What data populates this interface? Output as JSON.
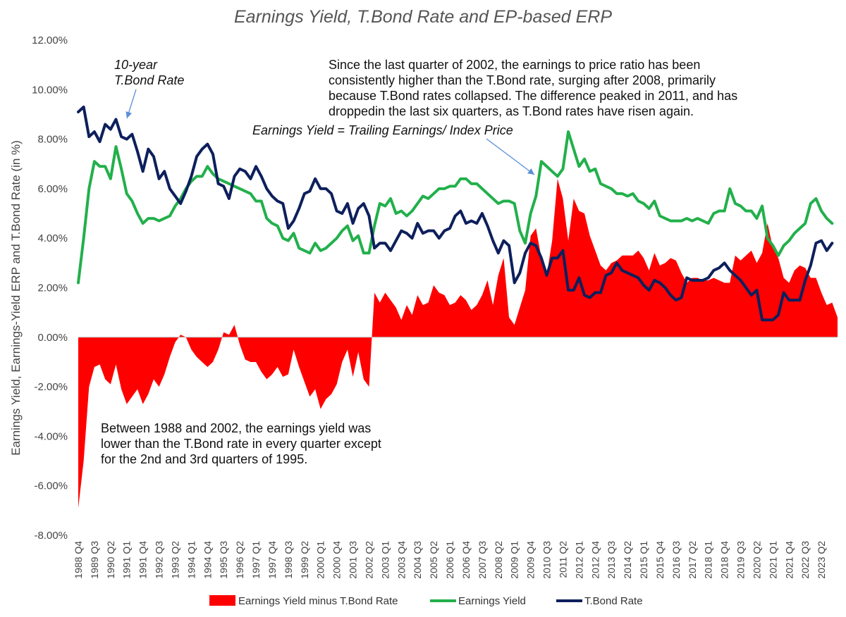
{
  "chart_data": {
    "type": "area",
    "title": "Earnings Yield, T.Bond Rate and EP-based ERP",
    "ylabel": "Earnings Yield, Earnings-Yield ERP and T.Bond Rate (in %)",
    "xlabel": "",
    "ylim": [
      -8,
      12
    ],
    "yticks": [
      "12.00%",
      "10.00%",
      "8.00%",
      "6.00%",
      "4.00%",
      "2.00%",
      "0.00%",
      "-2.00%",
      "-4.00%",
      "-6.00%",
      "-8.00%"
    ],
    "ytick_values": [
      12,
      10,
      8,
      6,
      4,
      2,
      0,
      -2,
      -4,
      -6,
      -8
    ],
    "x_start": "1988 Q4",
    "x_end": "2023 Q2",
    "x_tick_labels": [
      "1988 Q4",
      "1989 Q3",
      "1990 Q2",
      "1991 Q1",
      "1991 Q4",
      "1992 Q3",
      "1993 Q2",
      "1994 Q1",
      "1994 Q4",
      "1995 Q3",
      "1996 Q2",
      "1997 Q1",
      "1997 Q4",
      "1998 Q3",
      "1999 Q2",
      "2000 Q1",
      "2000 Q4",
      "2001 Q3",
      "2002 Q2",
      "2003 Q1",
      "2003 Q4",
      "2004 Q3",
      "2005 Q2",
      "2006 Q1",
      "2006 Q4",
      "2007 Q3",
      "2008 Q2",
      "2009 Q1",
      "2009 Q4",
      "2010 Q3",
      "2011 Q2",
      "2012 Q1",
      "2012 Q4",
      "2013 Q3",
      "2014 Q2",
      "2015 Q1",
      "2015 Q4",
      "2016 Q3",
      "2017 Q2",
      "2018 Q1",
      "2018 Q4",
      "2019 Q3",
      "2020 Q2",
      "2021 Q1",
      "2021 Q4",
      "2022 Q3",
      "2023 Q2"
    ],
    "grid": false,
    "legend_position": "bottom",
    "series": [
      {
        "name": "Earnings Yield minus T.Bond Rate",
        "type": "area",
        "color": "#ff0000",
        "values": [
          -6.9,
          -5.0,
          -2.0,
          -1.2,
          -1.1,
          -1.7,
          -1.9,
          -1.1,
          -2.1,
          -2.7,
          -2.4,
          -2.1,
          -2.7,
          -2.3,
          -1.7,
          -2.0,
          -1.5,
          -0.8,
          -0.2,
          0.1,
          0.0,
          -0.5,
          -0.8,
          -1.0,
          -1.2,
          -1.0,
          -0.5,
          0.2,
          0.1,
          0.5,
          -0.3,
          -0.9,
          -1.0,
          -1.0,
          -1.4,
          -1.7,
          -1.5,
          -1.2,
          -1.6,
          -1.5,
          -0.5,
          -1.2,
          -1.8,
          -2.4,
          -2.1,
          -2.9,
          -2.5,
          -2.3,
          -1.9,
          -1.0,
          -0.5,
          -1.6,
          -0.6,
          -1.7,
          -2.0,
          1.8,
          1.4,
          1.8,
          1.5,
          1.2,
          0.7,
          1.3,
          0.9,
          1.7,
          1.3,
          1.4,
          2.1,
          1.8,
          1.7,
          1.3,
          1.4,
          1.7,
          1.5,
          1.1,
          1.3,
          1.7,
          2.3,
          1.3,
          2.5,
          3.2,
          0.8,
          0.5,
          1.2,
          1.9,
          4.1,
          4.4,
          3.2,
          2.5,
          3.9,
          6.4,
          5.6,
          3.9,
          5.6,
          5.1,
          5.0,
          4.1,
          3.5,
          2.9,
          2.7,
          3.0,
          3.1,
          3.3,
          3.3,
          3.3,
          3.5,
          3.2,
          2.7,
          3.4,
          2.9,
          3.0,
          3.2,
          3.1,
          2.6,
          2.2,
          2.4,
          2.4,
          2.3,
          2.3,
          2.4,
          2.3,
          2.2,
          2.2,
          3.3,
          3.1,
          3.3,
          3.5,
          3.0,
          3.4,
          4.6,
          3.6,
          3.2,
          2.4,
          2.2,
          2.7,
          2.9,
          2.8,
          2.4,
          2.4,
          1.8,
          1.3,
          1.4,
          0.8
        ],
        "color_note": "filled area"
      },
      {
        "name": "Earnings Yield",
        "type": "line",
        "color": "#22b04b",
        "values": [
          2.2,
          4.0,
          6.0,
          7.1,
          6.9,
          6.9,
          6.4,
          7.7,
          6.8,
          5.8,
          5.5,
          5.0,
          4.6,
          4.8,
          4.8,
          4.7,
          4.8,
          4.9,
          5.3,
          5.6,
          6.0,
          6.3,
          6.5,
          6.5,
          6.9,
          6.6,
          6.4,
          6.3,
          6.2,
          6.1,
          6.0,
          5.9,
          5.8,
          5.5,
          5.5,
          4.8,
          4.6,
          4.5,
          4.0,
          3.9,
          4.2,
          3.6,
          3.5,
          3.4,
          3.8,
          3.5,
          3.6,
          3.8,
          4.0,
          4.3,
          4.5,
          3.9,
          4.1,
          3.4,
          3.4,
          4.5,
          5.4,
          5.3,
          5.6,
          5.0,
          5.1,
          4.9,
          5.1,
          5.4,
          5.7,
          5.6,
          5.8,
          6.0,
          6.0,
          6.1,
          6.1,
          6.4,
          6.4,
          6.2,
          6.2,
          6.0,
          5.8,
          5.6,
          5.4,
          5.5,
          5.5,
          5.4,
          4.3,
          3.8,
          5.0,
          5.7,
          7.1,
          6.9,
          6.7,
          6.5,
          6.8,
          8.3,
          7.6,
          6.9,
          7.2,
          6.7,
          6.8,
          6.2,
          6.1,
          6.0,
          5.8,
          5.8,
          5.7,
          5.8,
          5.5,
          5.4,
          5.2,
          5.5,
          4.9,
          4.8,
          4.7,
          4.7,
          4.7,
          4.8,
          4.7,
          4.8,
          4.7,
          4.6,
          5.0,
          5.1,
          5.1,
          6.0,
          5.4,
          5.3,
          5.1,
          5.1,
          4.8,
          5.3,
          4.0,
          3.7,
          3.3,
          3.7,
          3.9,
          4.2,
          4.4,
          4.6,
          5.4,
          5.6,
          5.1,
          4.8,
          4.6
        ],
        "color_note": "line"
      },
      {
        "name": "T.Bond Rate",
        "type": "line",
        "color": "#0d1f5c",
        "values": [
          9.1,
          9.3,
          8.1,
          8.3,
          7.9,
          8.6,
          8.4,
          8.8,
          8.1,
          8.0,
          8.2,
          7.5,
          6.7,
          7.6,
          7.3,
          6.4,
          6.7,
          6.0,
          5.7,
          5.4,
          5.9,
          6.5,
          7.3,
          7.6,
          7.8,
          7.4,
          6.2,
          6.1,
          5.6,
          6.5,
          6.8,
          6.7,
          6.4,
          6.9,
          6.5,
          6.0,
          5.7,
          5.5,
          5.4,
          4.4,
          4.7,
          5.2,
          5.8,
          5.9,
          6.4,
          6.0,
          6.0,
          5.8,
          5.1,
          5.0,
          5.4,
          4.6,
          5.2,
          5.4,
          4.9,
          3.6,
          3.8,
          3.8,
          3.5,
          3.9,
          4.3,
          4.2,
          4.0,
          4.6,
          4.2,
          4.3,
          4.3,
          4.0,
          4.3,
          4.4,
          4.9,
          5.1,
          4.6,
          4.7,
          4.6,
          5.0,
          4.5,
          3.9,
          3.4,
          3.9,
          3.7,
          2.2,
          2.6,
          3.4,
          3.8,
          3.7,
          3.2,
          2.5,
          3.2,
          3.2,
          3.5,
          1.9,
          1.9,
          2.4,
          1.7,
          1.6,
          1.8,
          1.8,
          2.5,
          2.6,
          3.0,
          2.7,
          2.6,
          2.5,
          2.4,
          2.1,
          1.9,
          2.3,
          2.2,
          2.0,
          1.7,
          1.5,
          1.6,
          2.4,
          2.3,
          2.3,
          2.3,
          2.4,
          2.7,
          2.8,
          3.0,
          2.7,
          2.5,
          2.3,
          2.0,
          1.7,
          1.9,
          0.7,
          0.7,
          0.7,
          0.9,
          1.8,
          1.5,
          1.5,
          1.5,
          2.3,
          2.9,
          3.8,
          3.9,
          3.5,
          3.8
        ],
        "color_note": "line"
      }
    ],
    "annotations": [
      {
        "lines": [
          "10-year",
          "T.Bond Rate"
        ],
        "italic": true
      },
      {
        "lines": [
          "Since the last quarter of 2002, the earnings to price ratio has been",
          "consistently higher than the T.Bond rate, surging after 2008, primarily",
          "because T.Bond rates collapsed. The difference peaked in 2011, and has",
          "droppedin the last six quarters, as T.Bond rates have risen again."
        ],
        "italic": false
      },
      {
        "lines": [
          "Earnings Yield = Trailing Earnings/  Index Price"
        ],
        "italic": true
      },
      {
        "lines": [
          "Between 1988 and 2002, the earnings yield was",
          "lower than the T.Bond rate in every quarter except",
          "for the 2nd and 3rd quarters of 1995."
        ],
        "italic": false
      }
    ]
  }
}
